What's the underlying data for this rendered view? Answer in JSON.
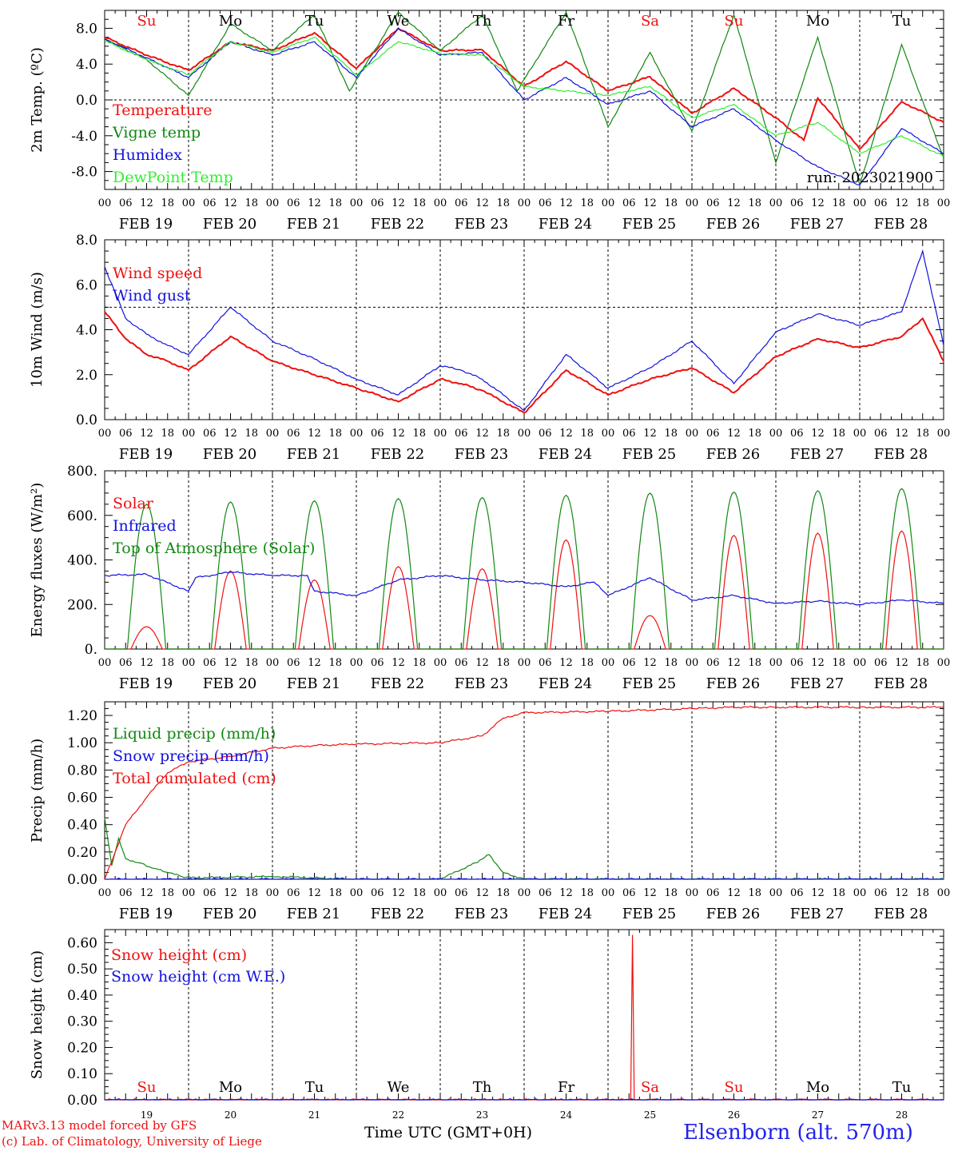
{
  "colors": {
    "red": "#ee1111",
    "green": "#118811",
    "blue": "#1111dd",
    "lightgreen": "#33ee33",
    "axis": "#000000"
  },
  "common": {
    "hour_ticks": [
      "00",
      "06",
      "12",
      "18"
    ],
    "date_labels": [
      "FEB 19",
      "FEB 20",
      "FEB 21",
      "FEB 22",
      "FEB 23",
      "FEB 24",
      "FEB 25",
      "FEB 26",
      "FEB 27",
      "FEB 28"
    ],
    "weekdays": [
      "Su",
      "Mo",
      "Tu",
      "We",
      "Th",
      "Fr",
      "Sa",
      "Su",
      "Mo",
      "Tu"
    ],
    "weekend_flags": [
      true,
      false,
      false,
      false,
      false,
      false,
      true,
      true,
      false,
      false
    ],
    "day_numbers": [
      "19",
      "20",
      "21",
      "22",
      "23",
      "24",
      "25",
      "26",
      "27",
      "28"
    ],
    "x_range_hours": [
      0,
      240
    ]
  },
  "chart_data": [
    {
      "type": "line",
      "ylabel": "2m Temp. (ºC)",
      "ylim": [
        -10,
        10
      ],
      "yticks": [
        "8.0",
        "4.0",
        "0.0",
        "-4.0",
        "-8.0"
      ],
      "ytick_values": [
        8,
        4,
        0,
        -4,
        -8
      ],
      "reference_line": 0,
      "annotation": "run: 2023021900",
      "series": [
        {
          "name": "Temperature",
          "color": "red",
          "x": [
            0,
            12,
            24,
            36,
            48,
            60,
            72,
            84,
            96,
            108,
            120,
            132,
            144,
            156,
            168,
            180,
            192,
            200,
            204,
            216,
            228,
            240
          ],
          "values": [
            7.0,
            5.0,
            3.3,
            6.5,
            5.5,
            7.5,
            3.5,
            8.0,
            5.5,
            5.6,
            1.5,
            4.3,
            1.0,
            2.6,
            -1.5,
            1.3,
            -2.0,
            -4.5,
            0.2,
            -5.5,
            -0.2,
            -2.5
          ]
        },
        {
          "name": "Vigne temp",
          "color": "green",
          "x": [
            0,
            12,
            24,
            36,
            48,
            60,
            70,
            84,
            96,
            108,
            118,
            132,
            144,
            156,
            168,
            180,
            192,
            204,
            216,
            228,
            240
          ],
          "values": [
            6.8,
            4.5,
            0.5,
            8.5,
            5.5,
            9.5,
            1.0,
            9.8,
            5.5,
            9.5,
            1.0,
            9.8,
            -3.0,
            5.3,
            -3.5,
            9.5,
            -7.0,
            7.0,
            -9.5,
            6.2,
            -6.5
          ]
        },
        {
          "name": "Humidex",
          "color": "blue",
          "x": [
            0,
            12,
            24,
            36,
            48,
            60,
            72,
            84,
            96,
            108,
            120,
            132,
            144,
            156,
            168,
            180,
            192,
            204,
            216,
            228,
            240
          ],
          "values": [
            6.8,
            4.7,
            2.5,
            6.5,
            5.0,
            6.5,
            2.5,
            8.0,
            5.0,
            5.3,
            0.0,
            2.5,
            -0.5,
            1.0,
            -3.0,
            -1.0,
            -4.5,
            -7.5,
            -9.5,
            -3.2,
            -6.0
          ]
        },
        {
          "name": "DewPoint Temp",
          "color": "lightgreen",
          "x": [
            0,
            12,
            24,
            36,
            48,
            60,
            72,
            84,
            96,
            108,
            120,
            132,
            144,
            156,
            168,
            180,
            192,
            204,
            216,
            228,
            240
          ],
          "values": [
            6.6,
            4.5,
            2.8,
            6.5,
            5.3,
            7.0,
            2.8,
            6.5,
            5.2,
            5.0,
            1.5,
            1.0,
            0.5,
            1.5,
            -2.0,
            -0.5,
            -4.0,
            -2.5,
            -6.0,
            -4.0,
            -6.3
          ]
        }
      ]
    },
    {
      "type": "line",
      "ylabel": "10m Wind (m/s)",
      "ylim": [
        0,
        8
      ],
      "yticks": [
        "8.0",
        "6.0",
        "4.0",
        "2.0",
        "0.0"
      ],
      "ytick_values": [
        8,
        6,
        4,
        2,
        0
      ],
      "reference_line": 5,
      "series": [
        {
          "name": "Wind speed",
          "color": "red",
          "x": [
            0,
            6,
            12,
            18,
            24,
            36,
            48,
            60,
            72,
            84,
            96,
            102,
            108,
            120,
            132,
            144,
            156,
            168,
            180,
            192,
            204,
            216,
            228,
            234,
            240
          ],
          "values": [
            4.8,
            3.6,
            2.9,
            2.6,
            2.2,
            3.7,
            2.6,
            2.0,
            1.4,
            0.8,
            1.8,
            1.6,
            1.3,
            0.3,
            2.2,
            1.1,
            1.8,
            2.3,
            1.2,
            2.8,
            3.6,
            3.2,
            3.7,
            4.5,
            2.6
          ]
        },
        {
          "name": "Wind gust",
          "color": "blue",
          "x": [
            0,
            6,
            12,
            18,
            24,
            36,
            48,
            60,
            72,
            84,
            96,
            102,
            108,
            120,
            132,
            144,
            156,
            168,
            180,
            192,
            204,
            216,
            228,
            234,
            240
          ],
          "values": [
            6.8,
            4.5,
            3.8,
            3.3,
            2.9,
            5.0,
            3.5,
            2.7,
            1.8,
            1.1,
            2.4,
            2.2,
            1.8,
            0.4,
            2.9,
            1.4,
            2.3,
            3.5,
            1.6,
            3.9,
            4.7,
            4.2,
            4.8,
            7.5,
            3.3
          ]
        }
      ]
    },
    {
      "type": "line",
      "ylabel": "Energy fluxes (W/m²)",
      "ylim": [
        0,
        800
      ],
      "yticks": [
        "800.",
        "600.",
        "400.",
        "200.",
        "0."
      ],
      "ytick_values": [
        800,
        600,
        400,
        200,
        0
      ],
      "series": [
        {
          "name": "Solar",
          "color": "red",
          "daily_peaks": [
            100,
            350,
            310,
            370,
            360,
            490,
            150,
            510,
            520,
            530
          ]
        },
        {
          "name": "Infrared",
          "color": "blue",
          "x": [
            0,
            12,
            24,
            26,
            36,
            48,
            58,
            60,
            72,
            84,
            96,
            108,
            120,
            132,
            140,
            144,
            156,
            168,
            180,
            192,
            204,
            216,
            228,
            240
          ],
          "values": [
            330,
            335,
            260,
            320,
            345,
            330,
            330,
            260,
            240,
            310,
            330,
            310,
            300,
            280,
            300,
            240,
            320,
            220,
            240,
            205,
            215,
            200,
            220,
            205
          ]
        },
        {
          "name": "Top of Atmosphere (Solar)",
          "color": "green",
          "daily_peaks": [
            650,
            660,
            665,
            675,
            680,
            690,
            700,
            705,
            710,
            720
          ]
        }
      ]
    },
    {
      "type": "line",
      "ylabel": "Precip (mm/h)",
      "ylim": [
        0,
        1.3
      ],
      "yticks": [
        "1.20",
        "1.00",
        "0.80",
        "0.60",
        "0.40",
        "0.20",
        "0.00"
      ],
      "ytick_values": [
        1.2,
        1.0,
        0.8,
        0.6,
        0.4,
        0.2,
        0.0
      ],
      "series": [
        {
          "name": "Liquid precip (mm/h)",
          "color": "green",
          "x": [
            0,
            2,
            4,
            6,
            10,
            14,
            18,
            22,
            26,
            48,
            60,
            72,
            96,
            106,
            110,
            114,
            120,
            240
          ],
          "values": [
            0.45,
            0.1,
            0.3,
            0.15,
            0.12,
            0.08,
            0.05,
            0.02,
            0.01,
            0.02,
            0.01,
            0.0,
            0.0,
            0.12,
            0.18,
            0.05,
            0.0,
            0.0
          ]
        },
        {
          "name": "Snow precip (mm/h)",
          "color": "blue",
          "x": [
            0,
            240
          ],
          "values": [
            0.0,
            0.0
          ]
        },
        {
          "name": "Total cumulated (cm)",
          "color": "red",
          "x": [
            0,
            6,
            12,
            18,
            24,
            36,
            48,
            60,
            72,
            96,
            108,
            114,
            120,
            144,
            168,
            180,
            192,
            216,
            240
          ],
          "values": [
            0.0,
            0.4,
            0.6,
            0.78,
            0.86,
            0.9,
            0.96,
            0.98,
            0.99,
            1.0,
            1.05,
            1.18,
            1.22,
            1.23,
            1.25,
            1.26,
            1.26,
            1.26,
            1.26
          ]
        }
      ]
    },
    {
      "type": "line",
      "ylabel": "Snow height (cm)",
      "ylim": [
        0,
        0.65
      ],
      "yticks": [
        "0.60",
        "0.50",
        "0.40",
        "0.30",
        "0.20",
        "0.10",
        "0.00"
      ],
      "ytick_values": [
        0.6,
        0.5,
        0.4,
        0.3,
        0.2,
        0.1,
        0.0
      ],
      "series": [
        {
          "name": "Snow height (cm)",
          "color": "red",
          "x": [
            0,
            150.5,
            151,
            151.5,
            240
          ],
          "values": [
            0,
            0,
            0.63,
            0,
            0
          ]
        },
        {
          "name": "Snow height (cm W.E.)",
          "color": "blue",
          "x": [
            0,
            240
          ],
          "values": [
            0,
            0
          ]
        }
      ]
    }
  ],
  "footer": {
    "model_line1": "MARv3.13 model forced by GFS",
    "model_line2": "(c) Lab. of Climatology, University of Liege",
    "xlabel": "Time UTC (GMT+0H)",
    "station": "Elsenborn (alt. 570m)"
  }
}
